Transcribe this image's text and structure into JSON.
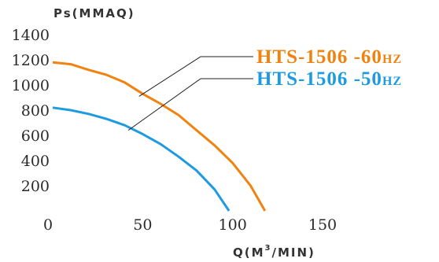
{
  "chart_data": {
    "type": "line",
    "title": "",
    "ylabel": "Ps(MMAQ)",
    "xlabel_main": "Q(M",
    "xlabel_sup": "3",
    "xlabel_tail": "/MIN)",
    "xlim": [
      0,
      150
    ],
    "ylim": [
      0,
      1400
    ],
    "x_ticks": [
      "0",
      "50",
      "100",
      "150"
    ],
    "y_ticks": [
      "200",
      "400",
      "600",
      "800",
      "1000",
      "1200",
      "1400"
    ],
    "grid": false,
    "legend_position": "top-right",
    "series": [
      {
        "name": "HTS-1506 -60",
        "unit": "HZ",
        "color": "#f0820f",
        "points": [
          [
            0,
            1180
          ],
          [
            10,
            1165
          ],
          [
            20,
            1120
          ],
          [
            30,
            1080
          ],
          [
            40,
            1020
          ],
          [
            50,
            930
          ],
          [
            60,
            850
          ],
          [
            70,
            760
          ],
          [
            80,
            640
          ],
          [
            90,
            520
          ],
          [
            100,
            380
          ],
          [
            110,
            200
          ],
          [
            118,
            0
          ]
        ],
        "leader_point": [
          48,
          910
        ]
      },
      {
        "name": "HTS-1506 -50",
        "unit": "HZ",
        "color": "#1e9be0",
        "points": [
          [
            0,
            820
          ],
          [
            10,
            800
          ],
          [
            20,
            770
          ],
          [
            30,
            730
          ],
          [
            40,
            680
          ],
          [
            50,
            610
          ],
          [
            60,
            530
          ],
          [
            70,
            430
          ],
          [
            80,
            320
          ],
          [
            90,
            170
          ],
          [
            98,
            0
          ]
        ],
        "leader_point": [
          42,
          640
        ]
      }
    ]
  }
}
